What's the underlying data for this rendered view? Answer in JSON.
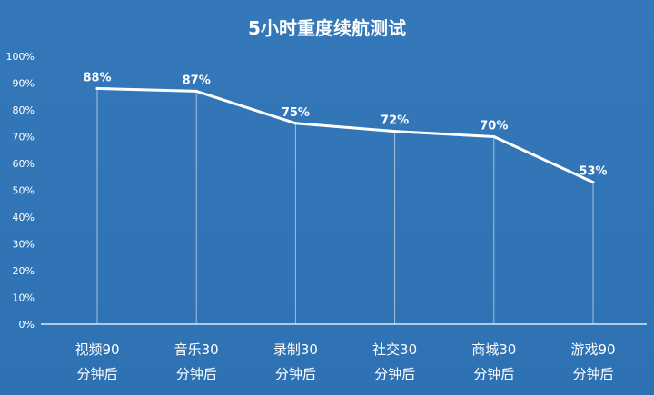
{
  "chart_data": {
    "type": "line",
    "title": "5小时重度续航测试",
    "categories": [
      [
        "视频90",
        "分钟后"
      ],
      [
        "音乐30",
        "分钟后"
      ],
      [
        "录制30",
        "分钟后"
      ],
      [
        "社交30",
        "分钟后"
      ],
      [
        "商城30",
        "分钟后"
      ],
      [
        "游戏90",
        "分钟后"
      ]
    ],
    "series": [
      {
        "values": [
          88,
          87,
          75,
          72,
          70,
          53
        ]
      }
    ],
    "data_labels": [
      "88%",
      "87%",
      "75%",
      "72%",
      "70%",
      "53%"
    ],
    "y_ticks": [
      "0%",
      "10%",
      "20%",
      "30%",
      "40%",
      "50%",
      "60%",
      "70%",
      "80%",
      "90%",
      "100%"
    ],
    "ylim": [
      0,
      100
    ],
    "grid": false,
    "legend": "none",
    "colors": {
      "background": "#2f75b8",
      "line": "#ffffff",
      "text": "#ffffff",
      "drop_lines": "#ffffff"
    }
  }
}
